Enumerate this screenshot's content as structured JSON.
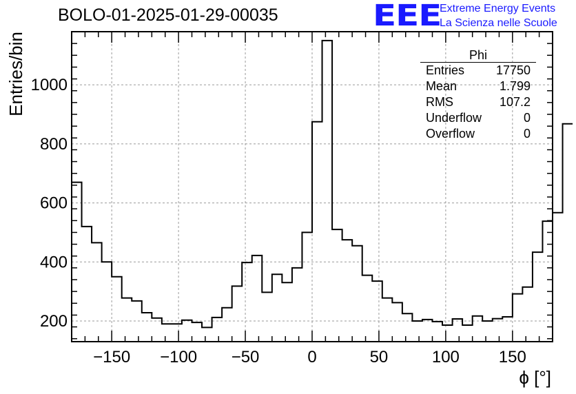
{
  "header": {
    "title": "BOLO-01-2025-01-29-00035",
    "logo": "EEE",
    "logo_line1": "Extreme Energy Events",
    "logo_line2": "La Scienza nelle Scuole"
  },
  "stats": {
    "name": "Phi",
    "rows": [
      {
        "label": "Entries",
        "value": "17750"
      },
      {
        "label": "Mean",
        "value": "1.799"
      },
      {
        "label": "RMS",
        "value": "107.2"
      },
      {
        "label": "Underflow",
        "value": "0"
      },
      {
        "label": "Overflow",
        "value": "0"
      }
    ]
  },
  "chart_data": {
    "type": "histogram",
    "title": "BOLO-01-2025-01-29-00035",
    "xlabel": "ϕ [°]",
    "ylabel": "Entries/bin",
    "xlim": [
      -180,
      180
    ],
    "ylim": [
      130,
      1180
    ],
    "bin_width": 7.5,
    "x_ticks": [
      -150,
      -100,
      -50,
      0,
      50,
      100,
      150
    ],
    "y_ticks": [
      200,
      400,
      600,
      800,
      1000
    ],
    "grid": true,
    "line_color": "#000000",
    "values": [
      670,
      520,
      465,
      400,
      350,
      278,
      268,
      228,
      210,
      190,
      190,
      203,
      195,
      178,
      212,
      245,
      318,
      398,
      422,
      297,
      358,
      330,
      380,
      500,
      875,
      1150,
      510,
      475,
      455,
      355,
      335,
      278,
      262,
      225,
      200,
      205,
      198,
      186,
      207,
      186,
      217,
      200,
      208,
      214,
      292,
      315,
      433,
      538,
      567,
      868
    ]
  }
}
